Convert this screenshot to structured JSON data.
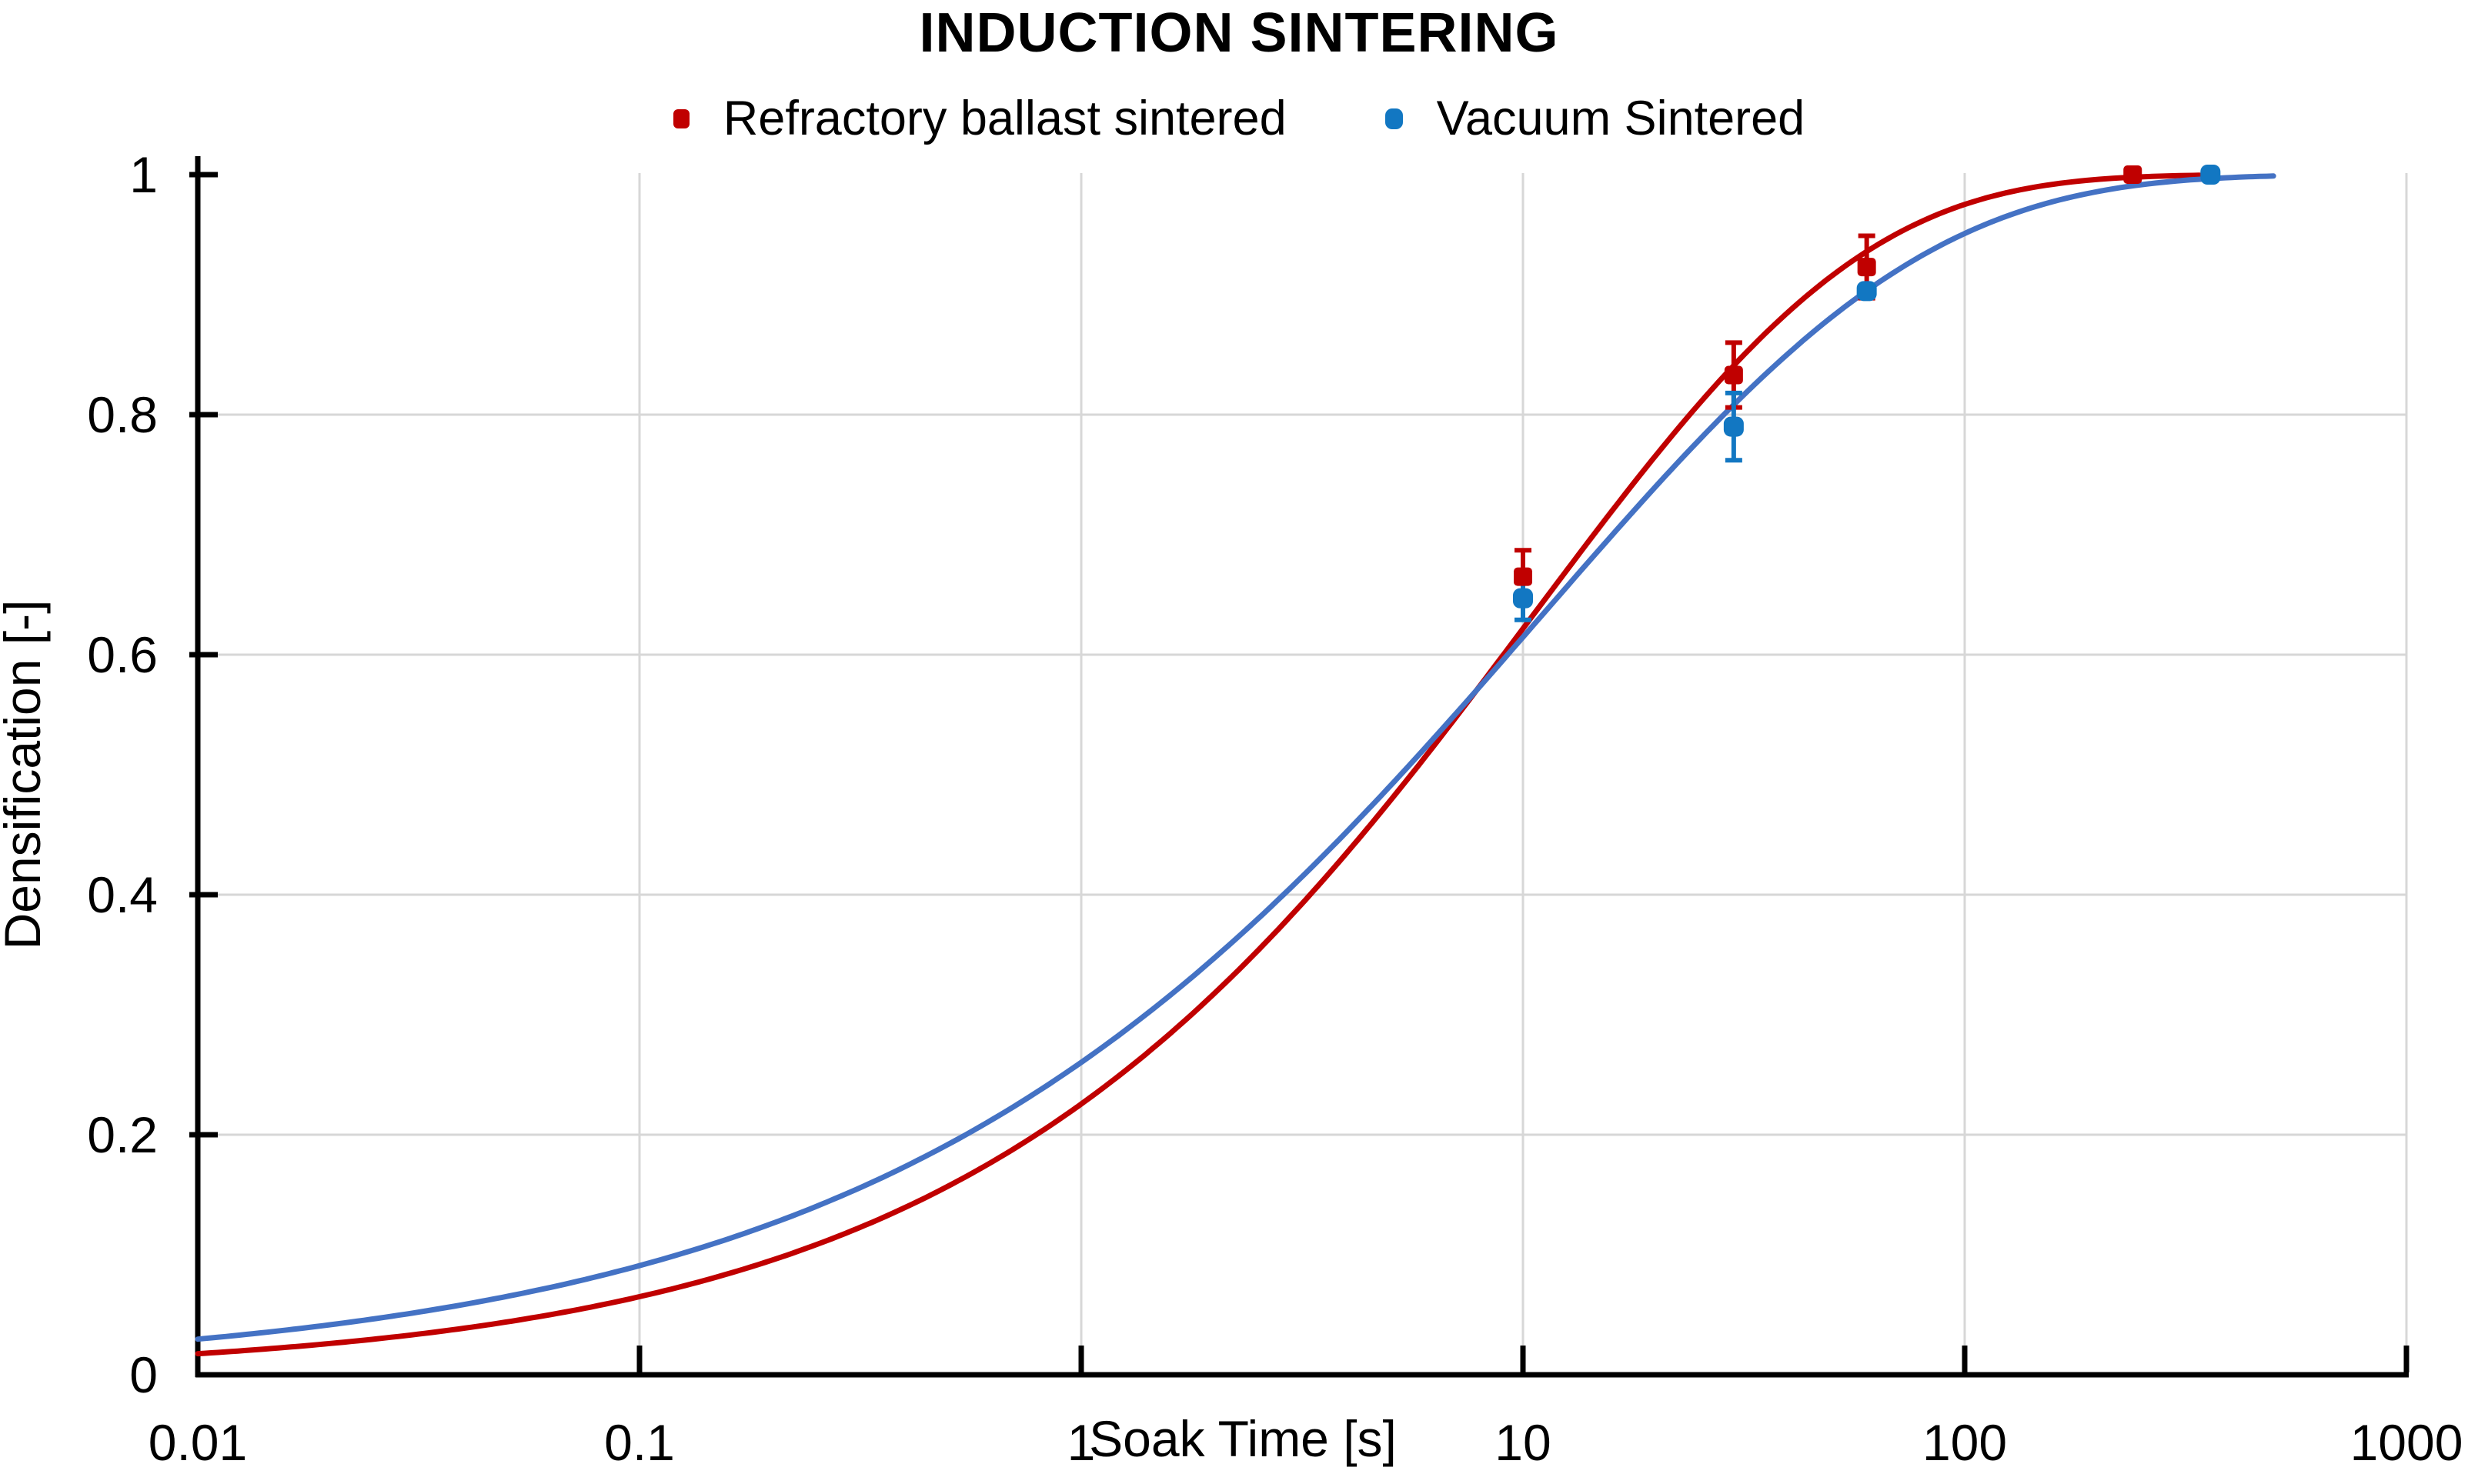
{
  "title": "INDUCTION SINTERING",
  "legend": {
    "items": [
      {
        "label": "Refractory ballast sintered",
        "color": "#C00000",
        "shape": "square"
      },
      {
        "label": "Vacuum Sintered",
        "color": "#1277C2",
        "shape": "rounded-square"
      }
    ]
  },
  "axes": {
    "x": {
      "title": "Soak Time [s]",
      "scale": "log",
      "min": 0.01,
      "max": 1000,
      "ticks": [
        0.01,
        0.1,
        1,
        10,
        100,
        1000
      ],
      "tick_labels": [
        "0.01",
        "0.1",
        "1",
        "10",
        "100",
        "1000"
      ]
    },
    "y": {
      "title": "Densification [-]",
      "scale": "linear",
      "min": 0,
      "max": 1,
      "ticks": [
        0,
        0.2,
        0.4,
        0.6,
        0.8,
        1
      ],
      "tick_labels": [
        "0",
        "0.2",
        "0.4",
        "0.6",
        "0.8",
        "1"
      ],
      "gridline_ticks": [
        0.2,
        0.4,
        0.6,
        0.8
      ]
    }
  },
  "chart_data": {
    "type": "scatter",
    "x_scale": "log",
    "xlim": [
      0.01,
      1000
    ],
    "ylim": [
      0,
      1
    ],
    "grid": "on",
    "legend_position": "top-center",
    "series": [
      {
        "name": "Refractory ballast sintered",
        "marker_color": "#C00000",
        "line_color": "#C00000",
        "marker": "square",
        "points": [
          {
            "x": 10,
            "y": 0.665,
            "err": 0.022
          },
          {
            "x": 30,
            "y": 0.833,
            "err": 0.027
          },
          {
            "x": 60,
            "y": 0.923,
            "err": 0.026
          },
          {
            "x": 240,
            "y": 1.0,
            "err": 0
          }
        ],
        "fit_curve": {
          "model": "avrami",
          "formula": "y = 1 - exp(-(t/tau)^n)",
          "tau": 10.5,
          "n": 0.58,
          "t_start": 0.01,
          "t_end": 340
        }
      },
      {
        "name": "Vacuum Sintered",
        "marker_color": "#1277C2",
        "line_color": "#4472C4",
        "marker": "rounded-square",
        "points": [
          {
            "x": 10,
            "y": 0.647,
            "err": 0.018
          },
          {
            "x": 30,
            "y": 0.79,
            "err": 0.028
          },
          {
            "x": 60,
            "y": 0.903,
            "err": 0
          },
          {
            "x": 360,
            "y": 1.0,
            "err": 0
          }
        ],
        "fit_curve": {
          "model": "avrami",
          "formula": "y = 1 - exp(-(t/tau)^n)",
          "tau": 11,
          "n": 0.5,
          "t_start": 0.01,
          "t_end": 500
        }
      }
    ],
    "colors": {
      "grid": "#D7D7D7",
      "axis": "#000000",
      "background": "#FFFFFF"
    }
  }
}
